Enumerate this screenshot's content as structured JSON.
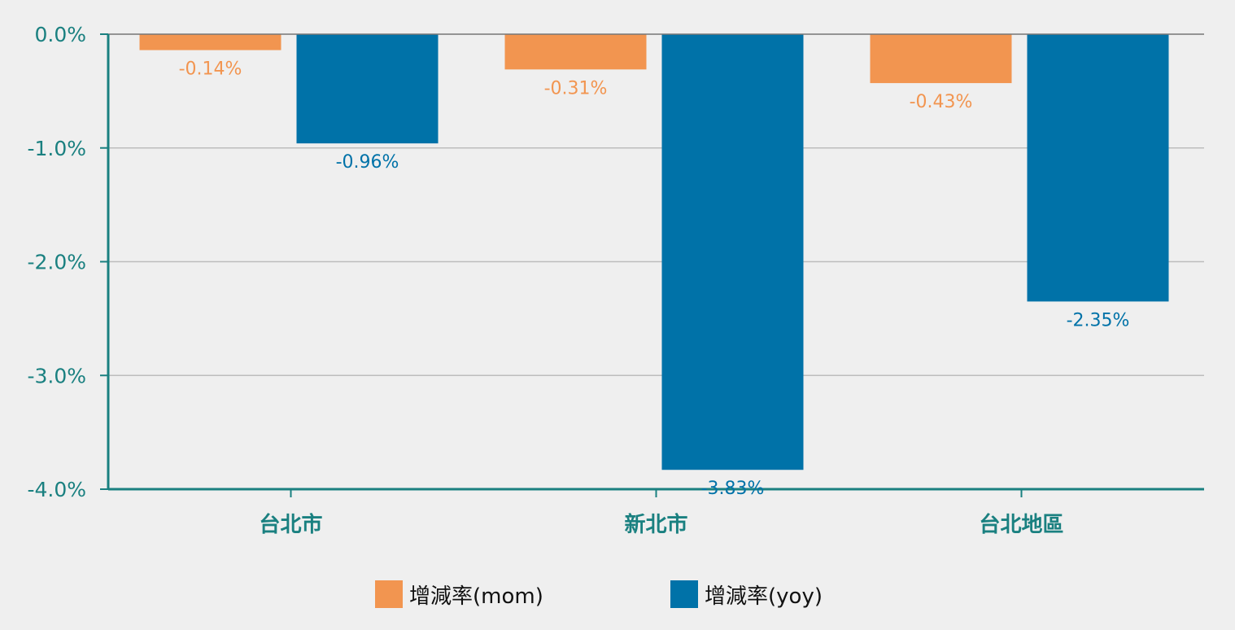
{
  "chart_data": {
    "type": "bar",
    "title": "",
    "xlabel": "",
    "ylabel": "",
    "categories": [
      "台北市",
      "新北市",
      "台北地區"
    ],
    "series": [
      {
        "name": "增減率(mom)",
        "values": [
          -0.14,
          -0.31,
          -0.43
        ],
        "labels": [
          "-0.14%",
          "-0.31%",
          "-0.43%"
        ],
        "color": "#f29550"
      },
      {
        "name": "增減率(yoy)",
        "values": [
          -0.96,
          -3.83,
          -2.35
        ],
        "labels": [
          "-0.96%",
          "-3.83%",
          "-2.35%"
        ],
        "color": "#0072a8"
      }
    ],
    "ylim": [
      -4.0,
      0.0
    ],
    "yticks": [
      0.0,
      -1.0,
      -2.0,
      -3.0,
      -4.0
    ],
    "ytick_labels": [
      "0.0%",
      "-1.0%",
      "-2.0%",
      "-3.0%",
      "-4.0%"
    ],
    "grid": true,
    "legend_position": "bottom-center"
  },
  "colors": {
    "background": "#efefef",
    "axis": "#1a8080",
    "tick_text": "#1a8080",
    "category_text": "#1a8080",
    "gridline": "#bdbdbd",
    "zero_line": "#777777",
    "legend_text": "#111111"
  }
}
